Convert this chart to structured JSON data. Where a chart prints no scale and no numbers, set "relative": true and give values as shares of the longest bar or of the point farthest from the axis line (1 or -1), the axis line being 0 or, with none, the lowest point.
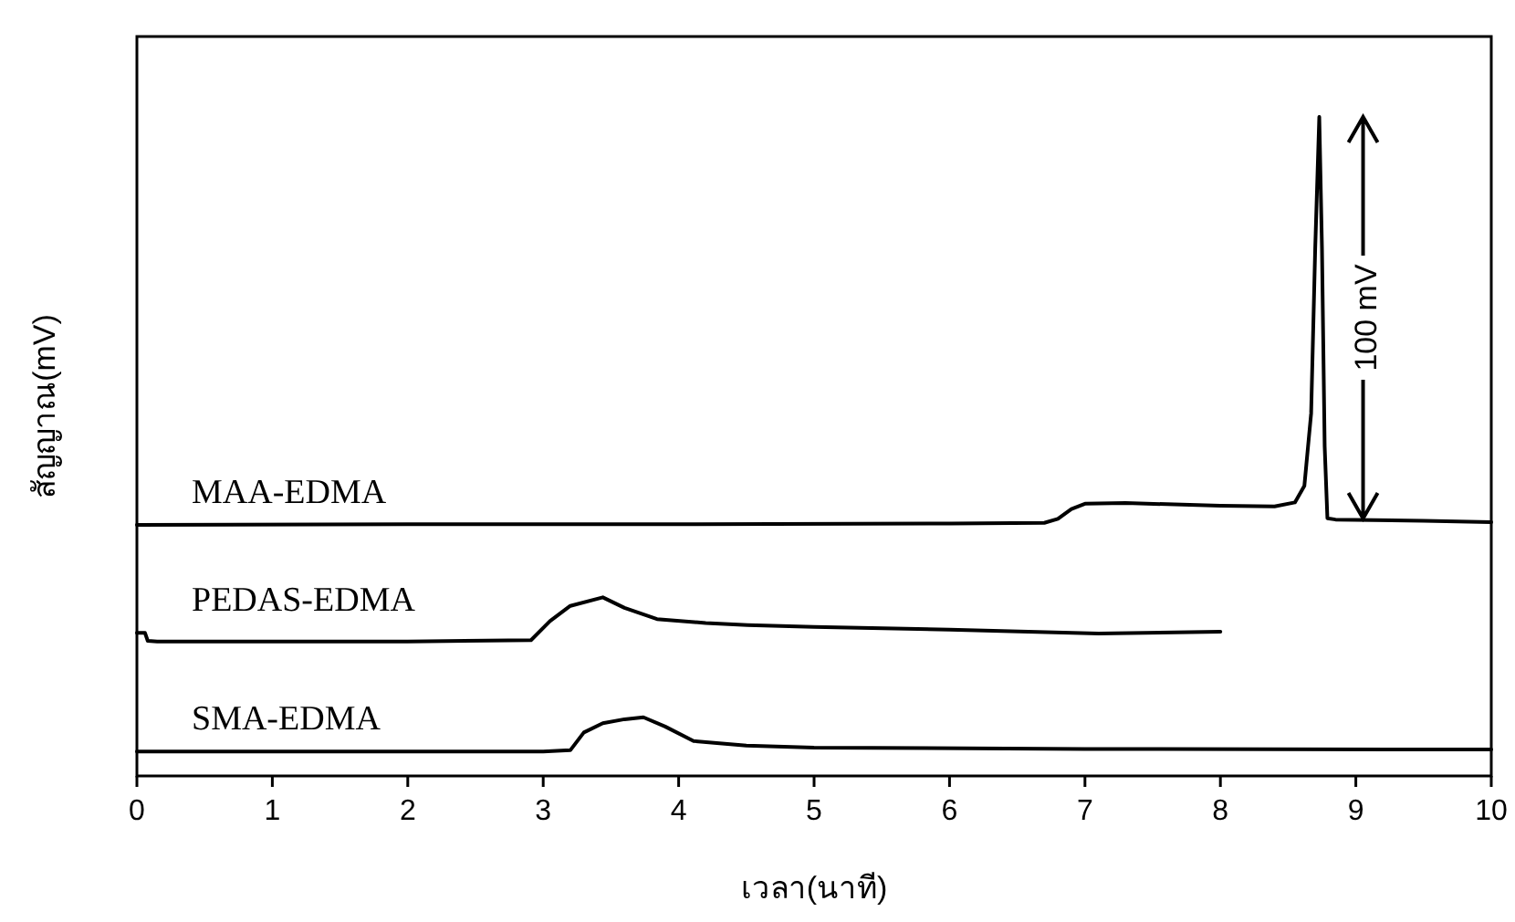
{
  "chart_data": {
    "type": "line",
    "relative": true,
    "xlabel": "เวลา(นาที)",
    "ylabel": "สัญญาณ(mV)",
    "xlim": [
      0,
      10
    ],
    "xticks": [
      0,
      1,
      2,
      3,
      4,
      5,
      6,
      7,
      8,
      9,
      10
    ],
    "grid": false,
    "marker": "none",
    "line_style": "solid",
    "annotations": [
      "100 mV"
    ],
    "series": [
      {
        "name": "MAA-EDMA",
        "color": "#000000",
        "x": [
          0,
          2,
          4,
          6,
          6.7,
          6.8,
          6.9,
          7.0,
          7.3,
          8.0,
          8.4,
          8.55,
          8.62,
          8.67,
          8.7,
          8.73,
          8.75,
          8.77,
          8.79,
          8.85,
          9.5,
          10
        ],
        "values": [
          0.381,
          0.382,
          0.382,
          0.383,
          0.384,
          0.39,
          0.405,
          0.413,
          0.414,
          0.41,
          0.409,
          0.415,
          0.44,
          0.55,
          0.8,
          1.0,
          0.8,
          0.5,
          0.391,
          0.389,
          0.387,
          0.385
        ]
      },
      {
        "name": "PEDAS-EDMA",
        "color": "#000000",
        "x": [
          0,
          0.06,
          0.08,
          0.15,
          1,
          2,
          2.91,
          3.05,
          3.2,
          3.44,
          3.6,
          3.84,
          4.2,
          4.51,
          5,
          6,
          7.1,
          8.0
        ],
        "values": [
          0.217,
          0.217,
          0.205,
          0.204,
          0.204,
          0.204,
          0.206,
          0.235,
          0.258,
          0.271,
          0.255,
          0.238,
          0.232,
          0.229,
          0.226,
          0.222,
          0.216,
          0.219
        ]
      },
      {
        "name": "SMA-EDMA",
        "color": "#000000",
        "x": [
          0,
          1,
          2,
          3,
          3.2,
          3.3,
          3.44,
          3.6,
          3.74,
          3.9,
          4.11,
          4.5,
          5,
          7,
          10
        ],
        "values": [
          0.037,
          0.037,
          0.037,
          0.037,
          0.039,
          0.066,
          0.08,
          0.086,
          0.089,
          0.075,
          0.053,
          0.046,
          0.043,
          0.041,
          0.04
        ]
      }
    ]
  }
}
